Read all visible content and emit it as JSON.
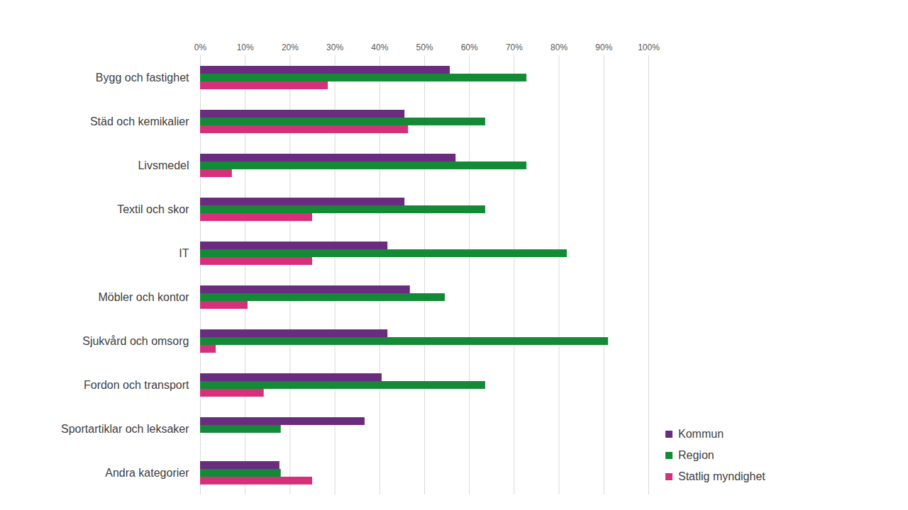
{
  "chart_data": {
    "type": "bar",
    "orientation": "horizontal",
    "grid": true,
    "legend": "bottom-right",
    "categories": [
      "Bygg och fastighet",
      "Städ och kemikalier",
      "Livsmedel",
      "Textil och skor",
      "IT",
      "Möbler och kontor",
      "Sjukvård och omsorg",
      "Fordon och transport",
      "Sportartiklar och leksaker",
      "Andra kategorier"
    ],
    "series": [
      {
        "name": "Kommun",
        "color": "#6a2c7e",
        "values": [
          55.7,
          45.6,
          57,
          45.6,
          41.8,
          46.8,
          41.8,
          40.5,
          36.7,
          17.7
        ]
      },
      {
        "name": "Region",
        "color": "#138a36",
        "values": [
          72.8,
          63.6,
          72.8,
          63.6,
          81.8,
          54.6,
          91,
          63.6,
          18,
          18
        ]
      },
      {
        "name": "Statlig myndighet",
        "color": "#d6307a",
        "values": [
          28.5,
          46.4,
          7.1,
          25,
          25,
          10.6,
          3.5,
          14.2,
          0,
          25
        ]
      }
    ],
    "xlim": [
      0,
      100
    ],
    "xticks": [
      {
        "value": 0,
        "label": "0%"
      },
      {
        "value": 10,
        "label": "10%"
      },
      {
        "value": 20,
        "label": "20%"
      },
      {
        "value": 30,
        "label": "30%"
      },
      {
        "value": 40,
        "label": "40%"
      },
      {
        "value": 50,
        "label": "50%"
      },
      {
        "value": 60,
        "label": "60%"
      },
      {
        "value": 70,
        "label": "70%"
      },
      {
        "value": 80,
        "label": "80%"
      },
      {
        "value": 90,
        "label": "90%"
      },
      {
        "value": 100,
        "label": "100%"
      }
    ]
  }
}
